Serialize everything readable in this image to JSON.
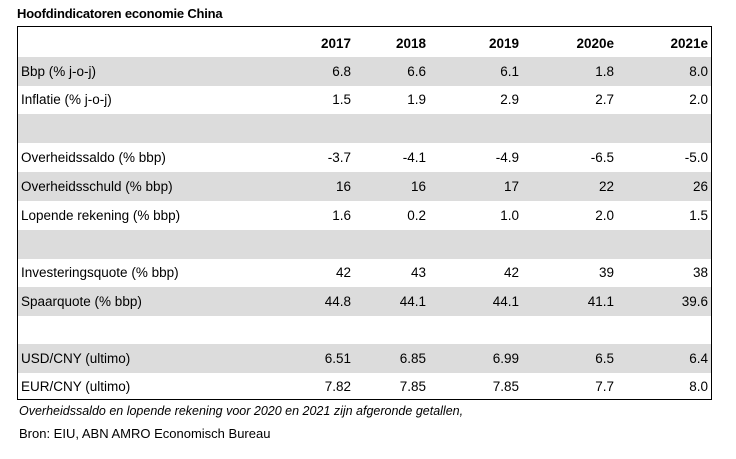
{
  "title": "Hoofdindicatoren economie China",
  "columns": [
    "2017",
    "2018",
    "2019",
    "2020e",
    "2021e"
  ],
  "rows": [
    {
      "label": "Bbp (% j-o-j)",
      "values": [
        "6.8",
        "6.6",
        "6.1",
        "1.8",
        "8.0"
      ]
    },
    {
      "label": "Inflatie (% j-o-j)",
      "values": [
        "1.5",
        "1.9",
        "2.9",
        "2.7",
        "2.0"
      ]
    },
    {
      "label": "Overheidssaldo (% bbp)",
      "values": [
        "-3.7",
        "-4.1",
        "-4.9",
        "-6.5",
        "-5.0"
      ]
    },
    {
      "label": "Overheidsschuld (% bbp)",
      "values": [
        "16",
        "16",
        "17",
        "22",
        "26"
      ]
    },
    {
      "label": "Lopende rekening (% bbp)",
      "values": [
        "1.6",
        "0.2",
        "1.0",
        "2.0",
        "1.5"
      ]
    },
    {
      "label": "Investeringsquote (% bbp)",
      "values": [
        "42",
        "43",
        "42",
        "39",
        "38"
      ]
    },
    {
      "label": "Spaarquote (% bbp)",
      "values": [
        "44.8",
        "44.1",
        "44.1",
        "41.1",
        "39.6"
      ]
    },
    {
      "label": "USD/CNY (ultimo)",
      "values": [
        "6.51",
        "6.85",
        "6.99",
        "6.5",
        "6.4"
      ]
    },
    {
      "label": "EUR/CNY (ultimo)",
      "values": [
        "7.82",
        "7.85",
        "7.85",
        "7.7",
        "8.0"
      ]
    }
  ],
  "footnote": "Overheidssaldo en lopende rekening voor 2020 en 2021 zijn afgeronde getallen,",
  "source": "Bron: EIU, ABN AMRO Economisch Bureau"
}
